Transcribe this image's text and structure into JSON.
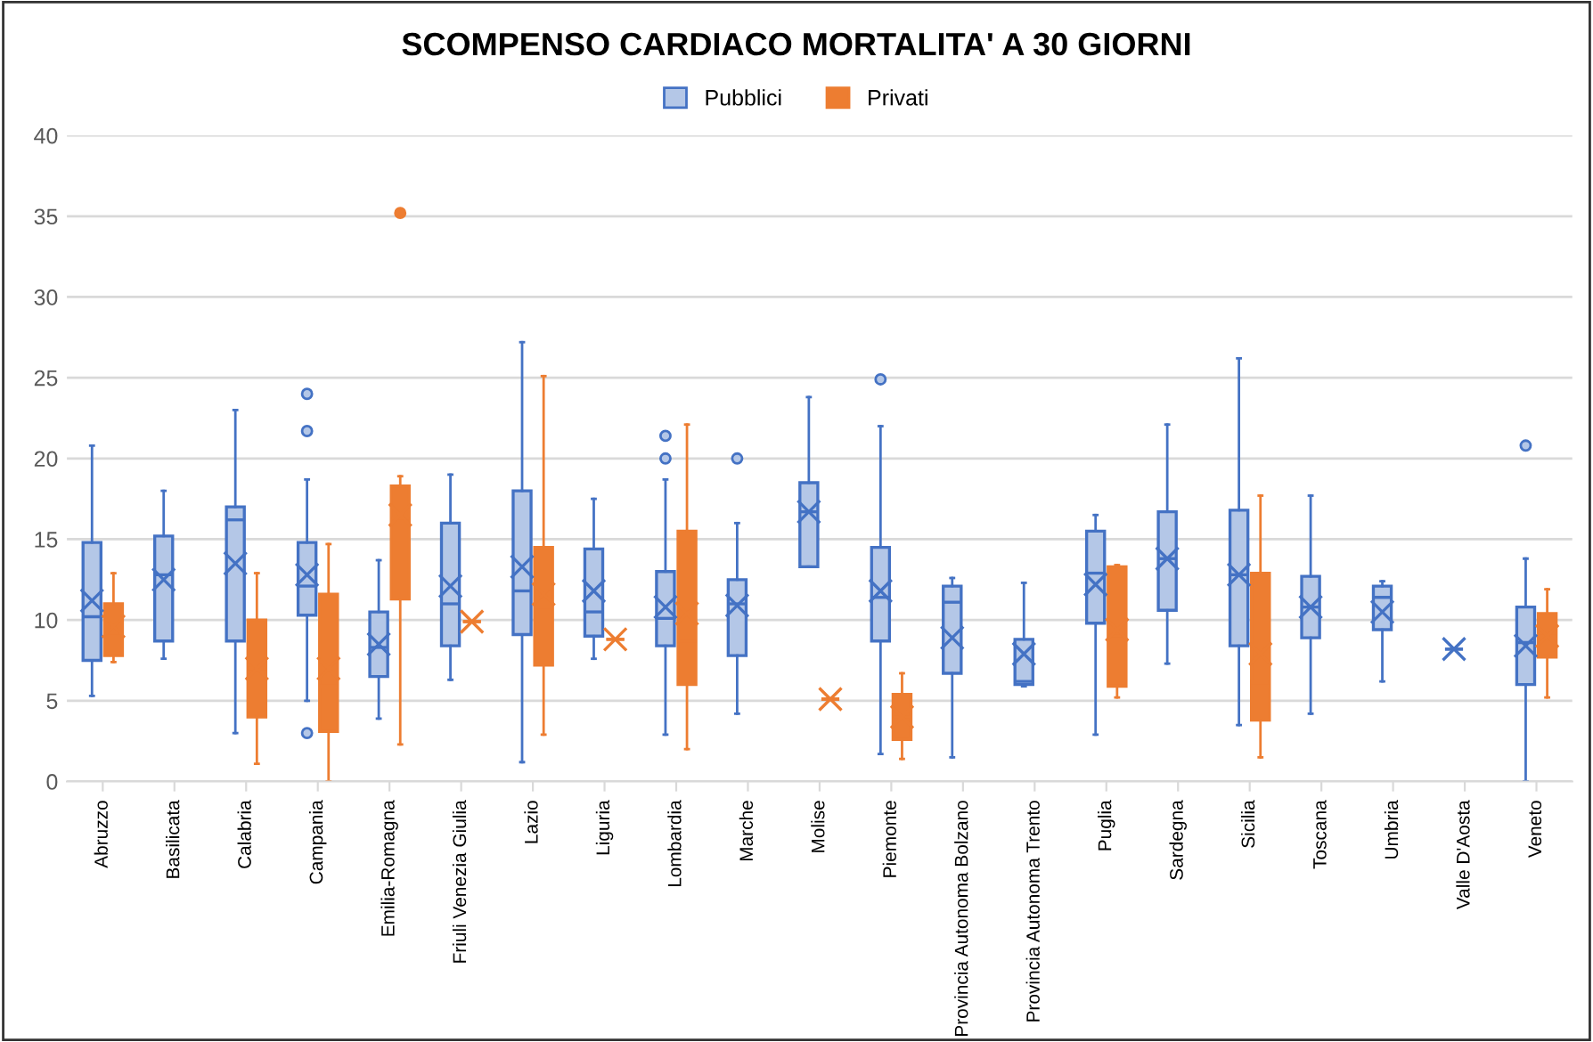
{
  "chart_data": {
    "type": "box",
    "title": "SCOMPENSO CARDIACO MORTALITA' A 30 GIORNI",
    "categories": [
      "Abruzzo",
      "Basilicata",
      "Calabria",
      "Campania",
      "Emilia-Romagna",
      "Friuli Venezia Giulia",
      "Lazio",
      "Liguria",
      "Lombardia",
      "Marche",
      "Molise",
      "Piemonte",
      "Provincia Autonoma Bolzano",
      "Provincia Autonoma Trento",
      "Puglia",
      "Sardegna",
      "Sicilia",
      "Toscana",
      "Umbria",
      "Valle D'Aosta",
      "Veneto"
    ],
    "ylim": [
      0,
      40
    ],
    "yticks": [
      0,
      5,
      10,
      15,
      20,
      25,
      30,
      35,
      40
    ],
    "grid": "y",
    "legend": "top",
    "marker": "cross",
    "series": [
      {
        "name": "Pubblici",
        "color": "#4472c4",
        "boxes": [
          {
            "low": 5.3,
            "q1": 7.5,
            "median": 10.2,
            "q3": 14.8,
            "high": 20.8,
            "mean": 11.2
          },
          {
            "low": 7.6,
            "q1": 8.7,
            "median": 12.8,
            "q3": 15.2,
            "high": 18,
            "mean": 12.5
          },
          {
            "low": 3,
            "q1": 8.7,
            "median": 16.2,
            "q3": 17,
            "high": 23,
            "mean": 13.5
          },
          {
            "low": 5,
            "q1": 10.3,
            "median": 12.1,
            "q3": 14.8,
            "high": 18.7,
            "mean": 12.8,
            "outliers": [
              3,
              21.7,
              24
            ]
          },
          {
            "low": 3.9,
            "q1": 6.5,
            "median": 8.3,
            "q3": 10.5,
            "high": 13.7,
            "mean": 8.5
          },
          {
            "low": 6.3,
            "q1": 8.4,
            "median": 11,
            "q3": 16,
            "high": 19,
            "mean": 12.1
          },
          {
            "low": 1.2,
            "q1": 9.1,
            "median": 11.8,
            "q3": 18,
            "high": 27.2,
            "mean": 13.3
          },
          {
            "low": 7.6,
            "q1": 9,
            "median": 10.5,
            "q3": 14.4,
            "high": 17.5,
            "mean": 11.8
          },
          {
            "low": 2.9,
            "q1": 8.4,
            "median": 10.1,
            "q3": 13,
            "high": 18.7,
            "mean": 10.8,
            "outliers": [
              20,
              21.4
            ]
          },
          {
            "low": 4.2,
            "q1": 7.8,
            "median": 11,
            "q3": 12.5,
            "high": 16,
            "mean": 10.9,
            "outliers": [
              20
            ]
          },
          {
            "low": 13.3,
            "q1": 13.3,
            "median": 16.7,
            "q3": 18.5,
            "high": 23.8,
            "mean": 16.7
          },
          {
            "low": 1.7,
            "q1": 8.7,
            "median": 11.4,
            "q3": 14.5,
            "high": 22,
            "mean": 11.8,
            "outliers": [
              24.9
            ]
          },
          {
            "low": 1.5,
            "q1": 6.7,
            "median": 11.1,
            "q3": 12.1,
            "high": 12.6,
            "mean": 8.9
          },
          {
            "low": 5.9,
            "q1": 6,
            "median": 6.2,
            "q3": 8.8,
            "high": 12.3,
            "mean": 7.9
          },
          {
            "low": 2.9,
            "q1": 9.8,
            "median": 12.9,
            "q3": 15.5,
            "high": 16.5,
            "mean": 12.2
          },
          {
            "low": 7.3,
            "q1": 10.6,
            "median": 13.8,
            "q3": 16.7,
            "high": 22.1,
            "mean": 13.8
          },
          {
            "low": 3.5,
            "q1": 8.4,
            "median": 12.8,
            "q3": 16.8,
            "high": 26.2,
            "mean": 12.8
          },
          {
            "low": 4.2,
            "q1": 8.9,
            "median": 10.8,
            "q3": 12.7,
            "high": 17.7,
            "mean": 10.8
          },
          {
            "low": 6.2,
            "q1": 9.4,
            "median": 11.4,
            "q3": 12.1,
            "high": 12.4,
            "mean": 10.5
          },
          {
            "low": 8.2,
            "q1": 8.2,
            "median": 8.2,
            "q3": 8.2,
            "high": 8.2,
            "mean": 8.2
          },
          {
            "low": 0,
            "q1": 6,
            "median": 8.6,
            "q3": 10.8,
            "high": 13.8,
            "mean": 8.4,
            "outliers": [
              20.8
            ]
          }
        ]
      },
      {
        "name": "Privati",
        "color": "#ed7d31",
        "boxes": [
          {
            "low": 7.4,
            "q1": 7.8,
            "median": 9.2,
            "q3": 11,
            "high": 12.9,
            "mean": 9.6
          },
          null,
          {
            "low": 1.1,
            "q1": 4,
            "median": 7,
            "q3": 10,
            "high": 12.9,
            "mean": 7
          },
          {
            "low": 0,
            "q1": 3.1,
            "median": 5.9,
            "q3": 11.6,
            "high": 14.7,
            "mean": 7
          },
          {
            "low": 2.3,
            "q1": 11.3,
            "median": 16.3,
            "q3": 18.3,
            "high": 18.9,
            "mean": 16.5,
            "outliers": [
              35.2
            ]
          },
          {
            "low": 9.9,
            "q1": 9.9,
            "median": 9.9,
            "q3": 9.9,
            "high": 9.9,
            "mean": 9.9
          },
          {
            "low": 2.9,
            "q1": 7.2,
            "median": 10.8,
            "q3": 14.5,
            "high": 25.1,
            "mean": 11.6
          },
          {
            "low": 8.8,
            "q1": 8.8,
            "median": 8.8,
            "q3": 8.8,
            "high": 8.8,
            "mean": 8.8
          },
          {
            "low": 2,
            "q1": 6,
            "median": 8.7,
            "q3": 15.5,
            "high": 22.1,
            "mean": 10.4
          },
          null,
          {
            "low": 5.1,
            "q1": 5.1,
            "median": 5.1,
            "q3": 5.1,
            "high": 5.1,
            "mean": 5.1
          },
          {
            "low": 1.4,
            "q1": 2.6,
            "median": 4,
            "q3": 5.4,
            "high": 6.7,
            "mean": 4
          },
          null,
          null,
          {
            "low": 5.2,
            "q1": 5.9,
            "median": 9,
            "q3": 13.3,
            "high": 13.4,
            "mean": 9.4
          },
          null,
          {
            "low": 1.5,
            "q1": 3.8,
            "median": 5.9,
            "q3": 12.9,
            "high": 17.7,
            "mean": 7.9
          },
          null,
          null,
          null,
          {
            "low": 5.2,
            "q1": 7.7,
            "median": 9,
            "q3": 10.4,
            "high": 11.9,
            "mean": 9
          }
        ]
      }
    ]
  }
}
